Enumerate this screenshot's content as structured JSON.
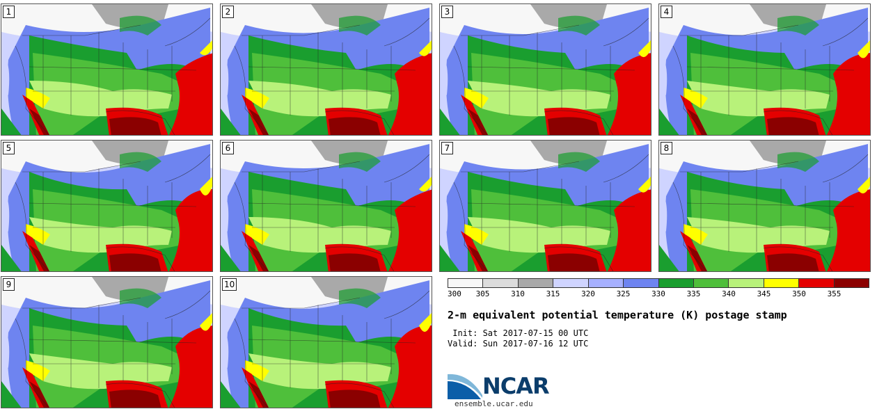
{
  "panels": [
    {
      "label": "1"
    },
    {
      "label": "2"
    },
    {
      "label": "3"
    },
    {
      "label": "4"
    },
    {
      "label": "5"
    },
    {
      "label": "6"
    },
    {
      "label": "7"
    },
    {
      "label": "8"
    },
    {
      "label": "9"
    },
    {
      "label": "10"
    }
  ],
  "legend": {
    "ticks": [
      "300",
      "305",
      "310",
      "315",
      "320",
      "325",
      "330",
      "335",
      "340",
      "345",
      "350",
      "355"
    ],
    "colors": [
      "#f7f7f7",
      "#dcdcdc",
      "#a9a9a9",
      "#cfd4ff",
      "#a6b0ff",
      "#6e84f0",
      "#1a9e2f",
      "#4fbf3b",
      "#b8f27a",
      "#ffff00",
      "#e40000",
      "#8b0000"
    ]
  },
  "title": "2-m equivalent potential temperature (K) postage stamp",
  "init_line": " Init: Sat 2017-07-15 00 UTC",
  "valid_line": "Valid: Sun 2017-07-16 12 UTC",
  "logo": {
    "name": "NCAR",
    "url": "ensemble.ucar.edu"
  }
}
